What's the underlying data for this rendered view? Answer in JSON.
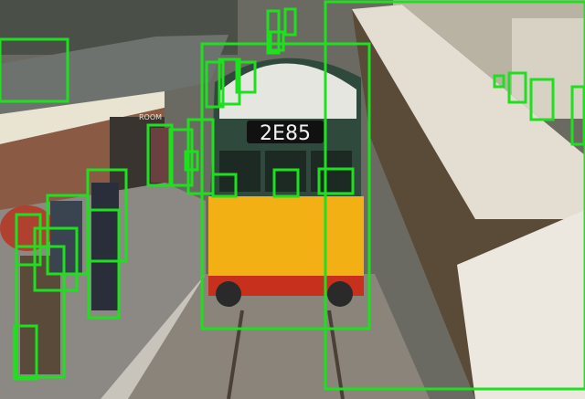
{
  "train_number": "2E85",
  "sign_text": "ROOM"
}
